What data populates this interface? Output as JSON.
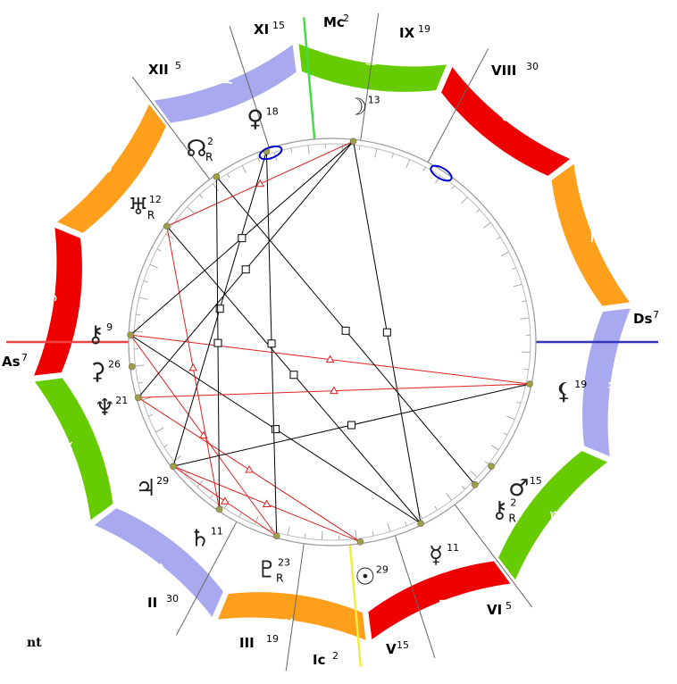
{
  "footer": {
    "text": "nt"
  },
  "colors": {
    "fire": "#ee0000",
    "earth": "#ff9f1c",
    "air": "#a9a9f0",
    "water": "#66cc00",
    "harmonious": "#dd2222",
    "tense": "#000000",
    "asc_axis": "#ee4444",
    "dsc_axis": "#3333bb",
    "mc_axis": "#eeee44",
    "ic_axis": "#44dd44",
    "planet_dot": "#a0a040",
    "stationary": "#0000cc"
  },
  "signs": [
    {
      "name": "Aries",
      "glyph": "♈",
      "color": "#ee0000"
    },
    {
      "name": "Taurus",
      "glyph": "♉",
      "color": "#ff9f1c"
    },
    {
      "name": "Gemini",
      "glyph": "♊",
      "color": "#a9a9f0"
    },
    {
      "name": "Cancer",
      "glyph": "♋",
      "color": "#66cc00"
    },
    {
      "name": "Leo",
      "glyph": "♌",
      "color": "#ee0000"
    },
    {
      "name": "Virgo",
      "glyph": "♍",
      "color": "#ff9f1c"
    },
    {
      "name": "Libra",
      "glyph": "♎",
      "color": "#a9a9f0"
    },
    {
      "name": "Scorpio",
      "glyph": "♏",
      "color": "#66cc00"
    },
    {
      "name": "Sagittarius",
      "glyph": "♐",
      "color": "#ee0000"
    },
    {
      "name": "Capricorn",
      "glyph": "♑",
      "color": "#ff9f1c"
    },
    {
      "name": "Aquarius",
      "glyph": "♒",
      "color": "#a9a9f0"
    },
    {
      "name": "Pisces",
      "glyph": "♓",
      "color": "#66cc00"
    }
  ],
  "axes": [
    {
      "id": "as",
      "label": "As",
      "deg": "7"
    },
    {
      "id": "ds",
      "label": "Ds",
      "deg": "7"
    },
    {
      "id": "mc",
      "label": "Mc",
      "deg": "2"
    },
    {
      "id": "ic",
      "label": "Ic",
      "deg": "2"
    }
  ],
  "houses": [
    {
      "label": "II",
      "deg": "30"
    },
    {
      "label": "III",
      "deg": "19"
    },
    {
      "label": "V",
      "deg": "15"
    },
    {
      "label": "VI",
      "deg": "5"
    },
    {
      "label": "VIII",
      "deg": "30"
    },
    {
      "label": "IX",
      "deg": "19"
    },
    {
      "label": "XI",
      "deg": "15"
    },
    {
      "label": "XII",
      "deg": "5"
    }
  ],
  "planets": [
    {
      "id": "sun",
      "glyph": "☉",
      "deg": "29",
      "retro": ""
    },
    {
      "id": "moon",
      "glyph": "☽",
      "deg": "13",
      "retro": ""
    },
    {
      "id": "mercury",
      "glyph": "☿",
      "deg": "11",
      "retro": ""
    },
    {
      "id": "venus",
      "glyph": "♀",
      "deg": "18",
      "retro": ""
    },
    {
      "id": "mars",
      "glyph": "♂",
      "deg": "15",
      "retro": ""
    },
    {
      "id": "jupiter",
      "glyph": "♃",
      "deg": "29",
      "retro": ""
    },
    {
      "id": "saturn",
      "glyph": "♄",
      "deg": "11",
      "retro": ""
    },
    {
      "id": "uranus",
      "glyph": "♅",
      "deg": "12",
      "retro": "R"
    },
    {
      "id": "neptune",
      "glyph": "♆",
      "deg": "21",
      "retro": ""
    },
    {
      "id": "pluto",
      "glyph": "♇",
      "deg": "23",
      "retro": "R"
    },
    {
      "id": "node",
      "glyph": "☊",
      "deg": "2",
      "retro": "R"
    },
    {
      "id": "chiron",
      "glyph": "⚷",
      "deg": "9",
      "retro": ""
    },
    {
      "id": "chiron2",
      "glyph": "⚷",
      "deg": "2",
      "retro": "R"
    },
    {
      "id": "lilith",
      "glyph": "⚸",
      "deg": "19",
      "retro": ""
    },
    {
      "id": "ceres",
      "glyph": "⚳",
      "deg": "26",
      "retro": ""
    }
  ]
}
